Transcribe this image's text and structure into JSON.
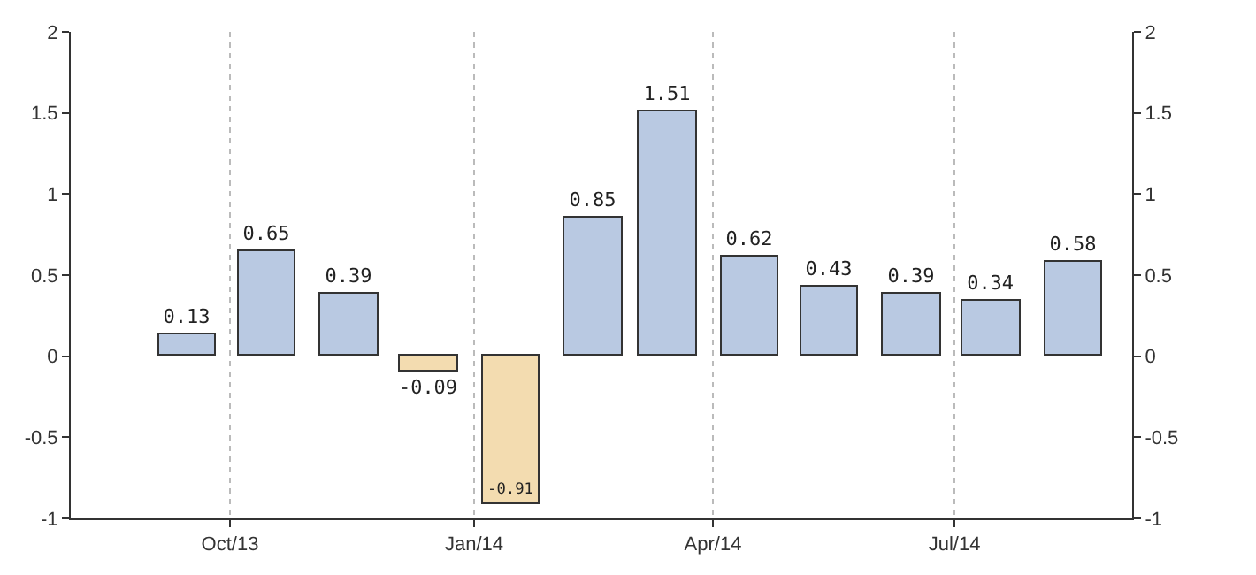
{
  "chart_data": {
    "type": "bar",
    "x": [
      "2013-09-15",
      "2013-10-15",
      "2013-11-15",
      "2013-12-15",
      "2014-01-15",
      "2014-02-15",
      "2014-03-15",
      "2014-04-15",
      "2014-05-15",
      "2014-06-15",
      "2014-07-15",
      "2014-08-15"
    ],
    "values": [
      0.13,
      0.65,
      0.39,
      -0.09,
      -0.91,
      0.85,
      1.51,
      0.62,
      0.43,
      0.39,
      0.34,
      0.58
    ],
    "colors": [
      "#b9c9e2",
      "#b9c9e2",
      "#b9c9e2",
      "#f3dcb0",
      "#f3dcb0",
      "#b9c9e2",
      "#b9c9e2",
      "#b9c9e2",
      "#b9c9e2",
      "#b9c9e2",
      "#b9c9e2",
      "#b9c9e2"
    ],
    "data_labels": true,
    "xlim": [
      "2013-08-02",
      "2014-09-06"
    ],
    "xticks": [
      {
        "value": "2013-10-01",
        "label": "Oct/13"
      },
      {
        "value": "2014-01-01",
        "label": "Jan/14"
      },
      {
        "value": "2014-04-01",
        "label": "Apr/14"
      },
      {
        "value": "2014-07-01",
        "label": "Jul/14"
      }
    ],
    "ylim": [
      -1,
      2
    ],
    "yticks": [
      -1,
      -0.5,
      0,
      0.5,
      1,
      1.5,
      2
    ],
    "y2lim": [
      -1,
      2
    ],
    "y2ticks": [
      -1,
      -0.5,
      0,
      0.5,
      1,
      1.5,
      2
    ],
    "grid": "x"
  }
}
